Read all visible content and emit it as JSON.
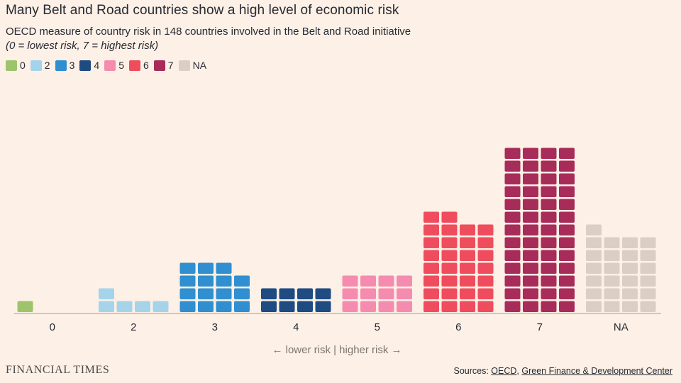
{
  "title": "Many Belt and Road countries show a high level of economic risk",
  "subtitle": "OECD measure of country risk in 148 countries involved in the Belt and Road initiative",
  "note": "(0 = lowest risk, 7 = highest risk)",
  "direction_label": "← lower risk | higher risk →",
  "publisher": "FINANCIAL TIMES",
  "sources": {
    "prefix": "Sources: ",
    "items": [
      "OECD",
      "Green Finance & Development Center"
    ],
    "separator": ", "
  },
  "colors": {
    "background": "#fdf0e6",
    "0": "#9dc46a",
    "2": "#a5d4ea",
    "3": "#2f8fd0",
    "4": "#1d4b82",
    "5": "#f58cb0",
    "6": "#ef4d5e",
    "7": "#a82c5a",
    "NA": "#dbcec5"
  },
  "chart_data": {
    "type": "waffle-column",
    "unit": "country",
    "categories": [
      "0",
      "2",
      "3",
      "4",
      "5",
      "6",
      "7",
      "NA"
    ],
    "values": [
      1,
      5,
      15,
      8,
      12,
      30,
      52,
      25
    ],
    "legend": [
      "0",
      "2",
      "3",
      "4",
      "5",
      "6",
      "7",
      "NA"
    ],
    "legend_placement": "top-left",
    "grid": false
  }
}
